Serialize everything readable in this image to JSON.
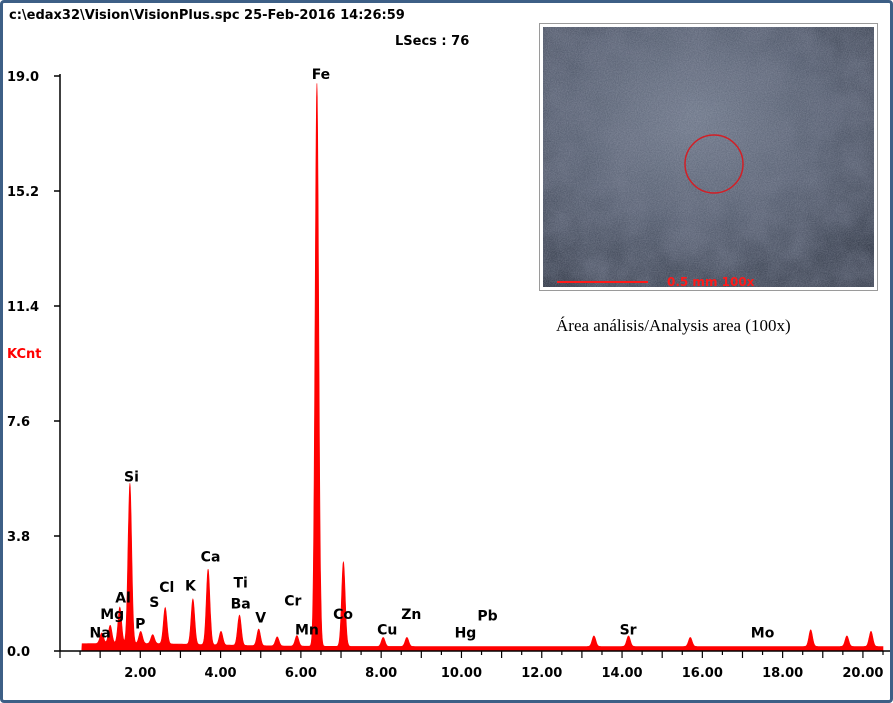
{
  "header": {
    "file_info": "c:\\edax32\\Vision\\VisionPlus.spc  25-Feb-2016 14:26:59",
    "lsecs": "LSecs :  76"
  },
  "inset": {
    "scale_label": "0.5 mm  100x",
    "caption": "Área análisis/Analysis area (100x)"
  },
  "colors": {
    "frame": "#3d5f86",
    "spectrum": "#ff0000",
    "ylabel": "#ff0000"
  },
  "chart_data": {
    "type": "area",
    "title": "",
    "xlabel": "",
    "ylabel": "KCnt",
    "xlim": [
      0,
      20.5
    ],
    "ylim": [
      0,
      19.0
    ],
    "yticks": [
      0.0,
      3.8,
      7.6,
      11.4,
      15.2,
      19.0
    ],
    "ytick_labels": [
      "0.0",
      "3.8",
      "7.6",
      "11.4",
      "15.2",
      "19.0"
    ],
    "xticks": [
      2,
      4,
      6,
      8,
      10,
      12,
      14,
      16,
      18,
      20
    ],
    "xtick_labels": [
      "2.00",
      "4.00",
      "6.00",
      "8.00",
      "10.00",
      "12.00",
      "14.00",
      "16.00",
      "18.00",
      "20.00"
    ],
    "background": 0.25,
    "peaks": [
      {
        "x": 1.04,
        "y": 0.35
      },
      {
        "x": 1.25,
        "y": 0.6
      },
      {
        "x": 1.49,
        "y": 1.2
      },
      {
        "x": 1.74,
        "y": 5.3
      },
      {
        "x": 2.01,
        "y": 0.4
      },
      {
        "x": 2.31,
        "y": 0.3
      },
      {
        "x": 2.62,
        "y": 1.2
      },
      {
        "x": 3.31,
        "y": 1.5
      },
      {
        "x": 3.69,
        "y": 2.5
      },
      {
        "x": 4.01,
        "y": 0.45
      },
      {
        "x": 4.47,
        "y": 1.0
      },
      {
        "x": 4.95,
        "y": 0.55
      },
      {
        "x": 5.41,
        "y": 0.3
      },
      {
        "x": 5.9,
        "y": 0.35
      },
      {
        "x": 6.4,
        "y": 18.6
      },
      {
        "x": 7.06,
        "y": 2.8
      },
      {
        "x": 8.05,
        "y": 0.3
      },
      {
        "x": 8.64,
        "y": 0.3
      },
      {
        "x": 13.3,
        "y": 0.35
      },
      {
        "x": 14.16,
        "y": 0.35
      },
      {
        "x": 15.7,
        "y": 0.3
      },
      {
        "x": 18.7,
        "y": 0.55
      },
      {
        "x": 19.6,
        "y": 0.35
      },
      {
        "x": 20.2,
        "y": 0.5
      }
    ],
    "annotations": [
      {
        "text": "Fe",
        "x": 6.5,
        "y": 18.9
      },
      {
        "text": "Si",
        "x": 1.78,
        "y": 5.6
      },
      {
        "text": "Ca",
        "x": 3.75,
        "y": 2.95
      },
      {
        "text": "Ti",
        "x": 4.5,
        "y": 2.1
      },
      {
        "text": "Ba",
        "x": 4.5,
        "y": 1.4
      },
      {
        "text": "K",
        "x": 3.25,
        "y": 2.0
      },
      {
        "text": "Cl",
        "x": 2.66,
        "y": 1.95
      },
      {
        "text": "Al",
        "x": 1.57,
        "y": 1.6
      },
      {
        "text": "Mg",
        "x": 1.3,
        "y": 1.05
      },
      {
        "text": "S",
        "x": 2.35,
        "y": 1.45
      },
      {
        "text": "P",
        "x": 2.0,
        "y": 0.75
      },
      {
        "text": "Na",
        "x": 1.0,
        "y": 0.45
      },
      {
        "text": "V",
        "x": 5.0,
        "y": 0.95
      },
      {
        "text": "Cr",
        "x": 5.8,
        "y": 1.5
      },
      {
        "text": "Mn",
        "x": 6.15,
        "y": 0.55
      },
      {
        "text": "Co",
        "x": 7.05,
        "y": 1.05
      },
      {
        "text": "Cu",
        "x": 8.15,
        "y": 0.55
      },
      {
        "text": "Zn",
        "x": 8.75,
        "y": 1.05
      },
      {
        "text": "Hg",
        "x": 10.1,
        "y": 0.45
      },
      {
        "text": "Pb",
        "x": 10.65,
        "y": 1.0
      },
      {
        "text": "Sr",
        "x": 14.15,
        "y": 0.55
      },
      {
        "text": "Mo",
        "x": 17.5,
        "y": 0.45
      }
    ]
  }
}
